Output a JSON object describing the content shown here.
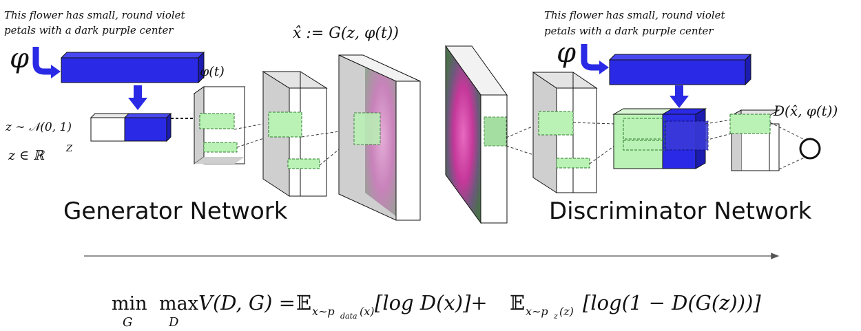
{
  "text_prompt_left": [
    "This flower has small, round violet",
    "petals with a dark purple center"
  ],
  "text_prompt_right": [
    "This flower has small, round violet",
    "petals with a dark purple center"
  ],
  "phi_symbol": "φ",
  "phi_t_label": "φ(t)",
  "z_noise_label": "z ∼ 𝒩(0, 1)",
  "z_space_label": "z  ∈  ℝ",
  "z_space_sup": "Z",
  "generated_image_label": "x̂ := G(z, φ(t))",
  "discriminator_output_label": "D(x̂, φ(t))",
  "generator_title": "Generator Network",
  "discriminator_title": "Discriminator Network",
  "objective": {
    "min_op": "min",
    "min_sub": "G",
    "max_op": "max",
    "max_sub": "D",
    "lhs": "V(D, G) = ",
    "E1": "𝔼",
    "E1_sub": "x∼p",
    "E1_subsub": "data",
    "E1_subtail": "(x)",
    "term1": "[log D(x)]+ ",
    "E2": "𝔼",
    "E2_sub": "x∼p",
    "E2_subsub": "z",
    "E2_subtail": "(z)",
    "term2": "[log(1 − D(G(z)))]"
  },
  "colors": {
    "blue": "#2a2ae6",
    "blue_dark": "#1a1a9c",
    "green_light": "#b9f2b4",
    "gray_face": "#d0d0d0"
  }
}
